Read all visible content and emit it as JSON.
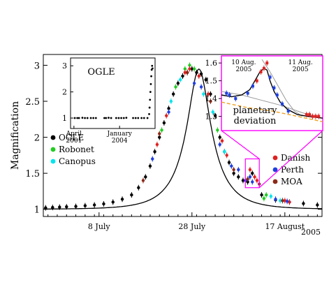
{
  "chart_data": [
    {
      "id": "main",
      "type": "scatter",
      "xlabel": "",
      "ylabel": "Magnification",
      "x_unit": "days (2005)",
      "xlim": [
        -5,
        55
      ],
      "ylim": [
        0.9,
        3.15
      ],
      "x_ticks": [
        {
          "value": 7,
          "label": "8 July"
        },
        {
          "value": 27,
          "label": "28 July"
        },
        {
          "value": 47,
          "label": "17 August"
        }
      ],
      "y_ticks": [
        {
          "value": 1,
          "label": "1"
        },
        {
          "value": 1.5,
          "label": "1.5"
        },
        {
          "value": 2,
          "label": "2"
        },
        {
          "value": 2.5,
          "label": "2.5"
        },
        {
          "value": 3,
          "label": "3"
        }
      ],
      "corner_label": "2005",
      "model": {
        "t0": 28.5,
        "tE": 7.2,
        "u0": 0.355,
        "base": 1.0
      },
      "series": [
        {
          "name": "OGLE",
          "color": "#000000",
          "points": [
            [
              -4.5,
              1.02
            ],
            [
              -3,
              1.025
            ],
            [
              -1.5,
              1.03
            ],
            [
              0,
              1.035
            ],
            [
              2,
              1.04
            ],
            [
              4,
              1.05
            ],
            [
              6,
              1.06
            ],
            [
              8,
              1.075
            ],
            [
              10,
              1.1
            ],
            [
              12,
              1.14
            ],
            [
              14,
              1.2
            ],
            [
              15.5,
              1.3
            ],
            [
              17,
              1.45
            ],
            [
              18,
              1.6
            ],
            [
              19,
              1.8
            ],
            [
              20,
              2.0
            ],
            [
              21,
              2.2
            ],
            [
              22,
              2.4
            ],
            [
              23,
              2.6
            ],
            [
              24,
              2.75
            ],
            [
              25,
              2.85
            ],
            [
              26,
              2.9
            ],
            [
              27,
              2.95
            ],
            [
              28,
              2.9
            ],
            [
              29,
              2.88
            ],
            [
              30,
              2.8
            ],
            [
              31,
              2.6
            ],
            [
              32,
              2.3
            ],
            [
              33,
              2.0
            ],
            [
              34,
              1.8
            ],
            [
              35,
              1.65
            ],
            [
              36,
              1.5
            ],
            [
              37,
              1.45
            ],
            [
              38,
              1.4
            ],
            [
              39,
              1.38
            ],
            [
              40,
              1.5
            ],
            [
              42,
              1.2
            ],
            [
              45,
              1.13
            ],
            [
              48,
              1.1
            ],
            [
              51,
              1.08
            ],
            [
              54,
              1.06
            ]
          ]
        },
        {
          "name": "Robonet",
          "color": "#22cc22",
          "points": [
            [
              20.5,
              2.1
            ],
            [
              23.5,
              2.7
            ],
            [
              25.5,
              2.95
            ],
            [
              26.5,
              3.0
            ],
            [
              27.5,
              2.95
            ],
            [
              32.5,
              2.1
            ],
            [
              42.5,
              1.15
            ],
            [
              43,
              1.2
            ]
          ]
        },
        {
          "name": "Canopus",
          "color": "#00e5ee",
          "points": [
            [
              22.5,
              2.5
            ],
            [
              24.5,
              2.8
            ],
            [
              29.5,
              2.6
            ],
            [
              31.5,
              2.35
            ],
            [
              34,
              1.8
            ],
            [
              44,
              1.18
            ],
            [
              46,
              1.12
            ]
          ]
        },
        {
          "name": "Danish",
          "color": "#dd2222",
          "points": [
            [
              19.5,
              1.9
            ],
            [
              21.5,
              2.3
            ],
            [
              25.5,
              2.9
            ],
            [
              26.5,
              2.95
            ],
            [
              28.5,
              2.85
            ],
            [
              30.5,
              2.6
            ],
            [
              33.5,
              1.95
            ],
            [
              34.5,
              1.75
            ],
            [
              39.5,
              1.55
            ],
            [
              40.5,
              1.45
            ],
            [
              41,
              1.4
            ],
            [
              47,
              1.12
            ],
            [
              48,
              1.1
            ]
          ]
        },
        {
          "name": "Perth",
          "color": "#1f3fe0",
          "points": [
            [
              18.5,
              1.7
            ],
            [
              22,
              2.35
            ],
            [
              27.5,
              2.75
            ],
            [
              29,
              2.7
            ],
            [
              33,
              1.9
            ],
            [
              35.5,
              1.6
            ],
            [
              37,
              1.55
            ],
            [
              38.5,
              1.4
            ],
            [
              39.5,
              1.45
            ],
            [
              40,
              1.38
            ],
            [
              45,
              1.14
            ],
            [
              47.5,
              1.11
            ]
          ]
        },
        {
          "name": "MOA",
          "color": "#8b2a1a",
          "points": [
            [
              16.5,
              1.4
            ],
            [
              20,
              2.05
            ],
            [
              26,
              2.9
            ],
            [
              31,
              2.5
            ],
            [
              36,
              1.55
            ],
            [
              39,
              1.42
            ],
            [
              41.5,
              1.35
            ],
            [
              46.5,
              1.12
            ]
          ]
        }
      ],
      "zoom_box": {
        "x": [
          38.5,
          41.5
        ],
        "y": [
          1.3,
          1.7
        ],
        "color": "#ff00ff"
      }
    },
    {
      "id": "inset-ogle",
      "type": "scatter",
      "title": "OGLE",
      "xlim": [
        0,
        100
      ],
      "ylim": [
        0.6,
        3.3
      ],
      "x_ticks": [
        {
          "value": 4,
          "label": "April 2001"
        },
        {
          "value": 58,
          "label": "January 2004"
        }
      ],
      "y_ticks": [
        {
          "value": 1,
          "label": "1"
        },
        {
          "value": 2,
          "label": "2"
        },
        {
          "value": 3,
          "label": "3"
        }
      ],
      "points": [
        [
          5,
          1.0
        ],
        [
          8,
          1.0
        ],
        [
          10,
          1.0
        ],
        [
          14,
          1.01
        ],
        [
          17,
          1.0
        ],
        [
          20,
          1.0
        ],
        [
          24,
          1.0
        ],
        [
          27,
          1.0
        ],
        [
          30,
          1.0
        ],
        [
          40,
          1.0
        ],
        [
          42,
          1.0
        ],
        [
          45,
          1.01
        ],
        [
          48,
          1.0
        ],
        [
          54,
          1.0
        ],
        [
          57,
          1.0
        ],
        [
          60,
          1.0
        ],
        [
          63,
          1.0
        ],
        [
          66,
          1.01
        ],
        [
          74,
          1.0
        ],
        [
          77,
          1.0
        ],
        [
          80,
          1.0
        ],
        [
          84,
          1.0
        ],
        [
          87,
          1.0
        ],
        [
          91,
          1.0
        ],
        [
          93,
          1.15
        ],
        [
          93.5,
          1.4
        ],
        [
          94,
          1.7
        ],
        [
          94.5,
          2.0
        ],
        [
          95,
          2.3
        ],
        [
          95.5,
          2.6
        ],
        [
          96,
          2.85
        ],
        [
          96.5,
          3.0
        ],
        [
          97,
          2.9
        ]
      ]
    },
    {
      "id": "inset-zoom",
      "type": "line",
      "xlim": [
        0,
        100
      ],
      "ylim": [
        1.22,
        1.64
      ],
      "y_ticks": [
        {
          "value": 1.3,
          "label": "1.3"
        },
        {
          "value": 1.4,
          "label": "1.4"
        },
        {
          "value": 1.5,
          "label": "1.5"
        },
        {
          "value": 1.6,
          "label": "1.6"
        }
      ],
      "date_labels": [
        {
          "x": 22,
          "line1": "10 Aug.",
          "line2": "2005"
        },
        {
          "x": 78,
          "line1": "11 Aug.",
          "line2": "2005"
        }
      ],
      "annotation": [
        "planetary",
        "deviation"
      ],
      "points": [
        {
          "x": 5,
          "y": 1.43,
          "color": "#1f3fe0"
        },
        {
          "x": 8,
          "y": 1.42,
          "color": "#1f3fe0"
        },
        {
          "x": 14,
          "y": 1.4,
          "color": "#1f3fe0"
        },
        {
          "x": 26,
          "y": 1.43,
          "color": "#1f3fe0"
        },
        {
          "x": 31,
          "y": 1.47,
          "color": "#1f3fe0"
        },
        {
          "x": 35,
          "y": 1.5,
          "color": "#dd2222"
        },
        {
          "x": 39,
          "y": 1.55,
          "color": "#dd2222"
        },
        {
          "x": 42,
          "y": 1.57,
          "color": "#dd2222"
        },
        {
          "x": 45,
          "y": 1.6,
          "color": "#dd2222"
        },
        {
          "x": 48,
          "y": 1.52,
          "color": "#1f3fe0"
        },
        {
          "x": 52,
          "y": 1.46,
          "color": "#1f3fe0"
        },
        {
          "x": 55,
          "y": 1.42,
          "color": "#1f3fe0"
        },
        {
          "x": 60,
          "y": 1.37,
          "color": "#1f3fe0"
        },
        {
          "x": 66,
          "y": 1.33,
          "color": "#1f3fe0"
        },
        {
          "x": 84,
          "y": 1.31,
          "color": "#dd2222"
        },
        {
          "x": 87,
          "y": 1.31,
          "color": "#dd2222"
        },
        {
          "x": 90,
          "y": 1.3,
          "color": "#dd2222"
        },
        {
          "x": 93,
          "y": 1.3,
          "color": "#dd2222"
        },
        {
          "x": 96,
          "y": 1.3,
          "color": "#dd2222"
        }
      ],
      "model_curve": [
        [
          0,
          1.42
        ],
        [
          10,
          1.41
        ],
        [
          20,
          1.42
        ],
        [
          28,
          1.45
        ],
        [
          33,
          1.5
        ],
        [
          38,
          1.55
        ],
        [
          42,
          1.57
        ],
        [
          45,
          1.56
        ],
        [
          48,
          1.5
        ],
        [
          52,
          1.44
        ],
        [
          58,
          1.38
        ],
        [
          65,
          1.34
        ],
        [
          75,
          1.31
        ],
        [
          85,
          1.3
        ],
        [
          100,
          1.29
        ]
      ],
      "single_lens_curve": [
        [
          0,
          1.44
        ],
        [
          20,
          1.42
        ],
        [
          40,
          1.39
        ],
        [
          60,
          1.36
        ],
        [
          80,
          1.32
        ],
        [
          100,
          1.29
        ]
      ],
      "steep_curve": [
        [
          40,
          1.62
        ],
        [
          48,
          1.55
        ],
        [
          56,
          1.47
        ],
        [
          64,
          1.39
        ],
        [
          72,
          1.33
        ],
        [
          80,
          1.3
        ]
      ],
      "baseline_curve": [
        [
          0,
          1.38
        ],
        [
          25,
          1.35
        ],
        [
          50,
          1.33
        ],
        [
          75,
          1.3
        ],
        [
          100,
          1.27
        ]
      ]
    }
  ]
}
